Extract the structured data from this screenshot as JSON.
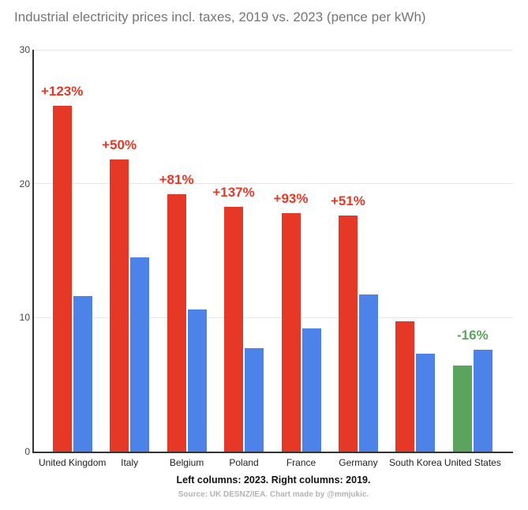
{
  "title": "Industrial electricity prices incl. taxes, 2019 vs. 2023 (pence per kWh)",
  "footer": {
    "legend_note": "Left columns: 2023. Right columns: 2019.",
    "source": "Source: UK DESNZ/IEA. Chart made by @mmjukic."
  },
  "colors": {
    "bar_2023_increase": "#e53826",
    "bar_2023_decrease": "#5ba45e",
    "bar_2019": "#4d82e8",
    "pct_increase": "#e53826",
    "pct_decrease": "#5ba45e",
    "gridline": "#e6e6e6",
    "axis": "#333333",
    "title_text": "#757575"
  },
  "chart_data": {
    "type": "bar",
    "title": "Industrial electricity prices incl. taxes, 2019 vs. 2023 (pence per kWh)",
    "categories": [
      "United Kingdom",
      "Italy",
      "Belgium",
      "Poland",
      "France",
      "Germany",
      "South Korea",
      "United States"
    ],
    "series": [
      {
        "name": "2023",
        "values": [
          25.8,
          21.8,
          19.2,
          18.3,
          17.8,
          17.6,
          9.7,
          6.4
        ]
      },
      {
        "name": "2019",
        "values": [
          11.6,
          14.5,
          10.6,
          7.7,
          9.2,
          11.7,
          7.3,
          7.6
        ]
      }
    ],
    "bar_labels": [
      "+123%",
      "+50%",
      "+81%",
      "+137%",
      "+93%",
      "+51%",
      "",
      "-16%"
    ],
    "xlabel": "",
    "ylabel": "",
    "ylim": [
      0,
      30
    ],
    "yticks": [
      0,
      10,
      20,
      30
    ],
    "grid": true,
    "legend_position": "none"
  }
}
